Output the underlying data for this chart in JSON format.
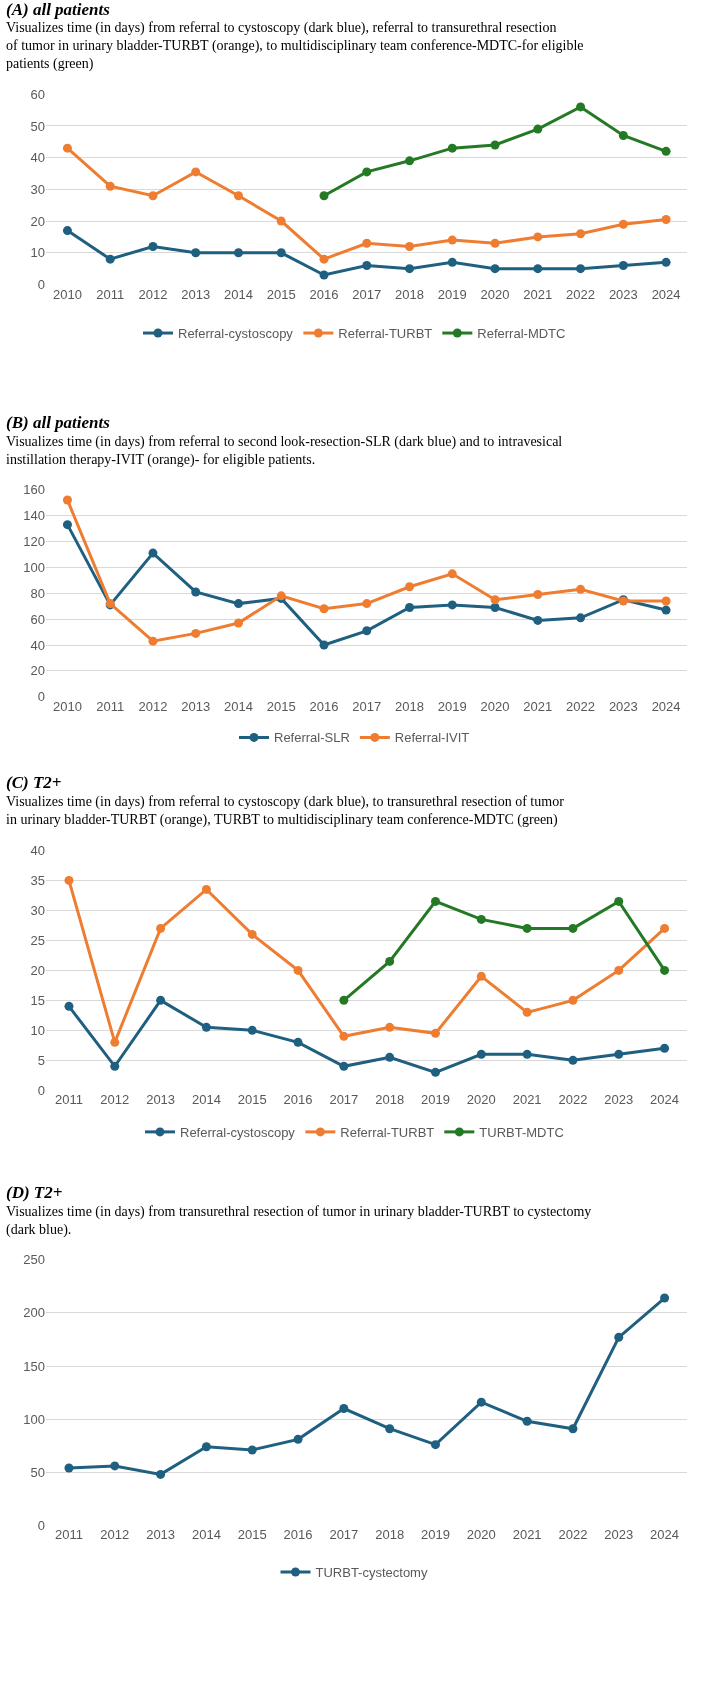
{
  "chart_data": [
    {
      "type": "line",
      "title": "(A) all patients",
      "subtitle": "Visualizes time (in days) from referral to cystoscopy (dark blue), referral to transurethral resection of tumor in urinary bladder-TURBT (orange), to multidisciplinary team conference-MDTC-for eligible patients (green)",
      "categories": [
        "2010",
        "2011",
        "2012",
        "2013",
        "2014",
        "2015",
        "2016",
        "2017",
        "2018",
        "2019",
        "2020",
        "2021",
        "2022",
        "2023",
        "2024"
      ],
      "ylim": [
        0,
        60
      ],
      "yticks": [
        0,
        10,
        20,
        30,
        40,
        50,
        60
      ],
      "grid": "y",
      "legend": "bottom",
      "marker": "circle",
      "series": [
        {
          "name": "Referral-cystoscopy",
          "color": "#1f5f80",
          "values": [
            17,
            8,
            12,
            10,
            10,
            10,
            3,
            6,
            5,
            7,
            5,
            5,
            5,
            6,
            7
          ]
        },
        {
          "name": "Referral-TURBT",
          "color": "#ee7d31",
          "values": [
            43,
            31,
            28,
            35.5,
            28,
            20,
            8,
            13,
            12,
            14,
            13,
            15,
            16,
            19,
            20.5
          ]
        },
        {
          "name": "Referral-MDTC",
          "color": "#247a24",
          "values": [
            null,
            null,
            null,
            null,
            null,
            null,
            28,
            35.5,
            39,
            43,
            44,
            49,
            56,
            47,
            42
          ]
        }
      ]
    },
    {
      "type": "line",
      "title": "(B) all patients",
      "subtitle": "Visualizes time (in days) from referral to second look-resection-SLR (dark blue) and to intravesical instillation therapy-IVIT (orange)- for eligible patients.",
      "categories": [
        "2010",
        "2011",
        "2012",
        "2013",
        "2014",
        "2015",
        "2016",
        "2017",
        "2018",
        "2019",
        "2020",
        "2021",
        "2022",
        "2023",
        "2024"
      ],
      "ylim": [
        0,
        160
      ],
      "yticks": [
        0,
        20,
        40,
        60,
        80,
        100,
        120,
        140,
        160
      ],
      "grid": "y",
      "legend": "bottom",
      "marker": "circle",
      "series": [
        {
          "name": "Referral-SLR",
          "color": "#1f5f80",
          "values": [
            133,
            71,
            111,
            81,
            72,
            76,
            40,
            51,
            69,
            71,
            69,
            59,
            61,
            75,
            67
          ]
        },
        {
          "name": "Referral-IVIT",
          "color": "#ee7d31",
          "values": [
            152,
            72,
            43,
            49,
            57,
            78,
            68,
            72,
            85,
            95,
            75,
            79,
            83,
            74,
            74
          ]
        }
      ]
    },
    {
      "type": "line",
      "title": "(C) T2+",
      "subtitle": "Visualizes time (in days) from referral to cystoscopy (dark blue), to transurethral resection of tumor in urinary bladder-TURBT (orange), TURBT to multidisciplinary team conference-MDTC (green)",
      "categories": [
        "2011",
        "2012",
        "2013",
        "2014",
        "2015",
        "2016",
        "2017",
        "2018",
        "2019",
        "2020",
        "2021",
        "2022",
        "2023",
        "2024"
      ],
      "ylim": [
        0,
        40
      ],
      "yticks": [
        0,
        5,
        10,
        15,
        20,
        25,
        30,
        35,
        40
      ],
      "grid": "y",
      "legend": "bottom",
      "marker": "circle",
      "series": [
        {
          "name": "Referral-cystoscopy",
          "color": "#1f5f80",
          "values": [
            14,
            4,
            15,
            10.5,
            10,
            8,
            4,
            5.5,
            3,
            6,
            6,
            5,
            6,
            7
          ]
        },
        {
          "name": "Referral-TURBT",
          "color": "#ee7d31",
          "values": [
            35,
            8,
            27,
            33.5,
            26,
            20,
            9,
            10.5,
            9.5,
            19,
            13,
            15,
            20,
            27
          ]
        },
        {
          "name": "TURBT-MDTC",
          "color": "#247a24",
          "values": [
            null,
            null,
            null,
            null,
            null,
            null,
            15,
            21.5,
            31.5,
            28.5,
            27,
            27,
            31.5,
            20
          ]
        }
      ]
    },
    {
      "type": "line",
      "title": "(D) T2+",
      "subtitle": "Visualizes time (in days) from transurethral resection of tumor in urinary bladder-TURBT to cystectomy (dark blue).",
      "categories": [
        "2011",
        "2012",
        "2013",
        "2014",
        "2015",
        "2016",
        "2017",
        "2018",
        "2019",
        "2020",
        "2021",
        "2022",
        "2023",
        "2024"
      ],
      "ylim": [
        0,
        250
      ],
      "yticks": [
        0,
        50,
        100,
        150,
        200,
        250
      ],
      "grid": "y",
      "legend": "bottom",
      "marker": "circle",
      "series": [
        {
          "name": "TURBT-cystectomy",
          "color": "#1f5f80",
          "values": [
            54,
            56,
            48,
            74,
            71,
            81,
            110,
            91,
            76,
            116,
            98,
            91,
            177,
            214
          ]
        }
      ]
    }
  ]
}
